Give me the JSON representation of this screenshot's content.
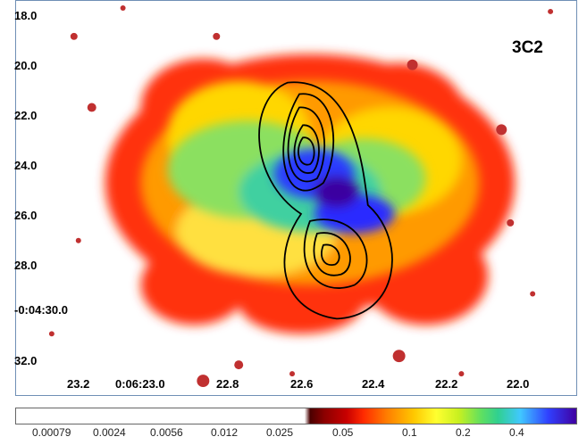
{
  "image": {
    "source_label": "3C2",
    "y_axis_ticks": [
      "18.0",
      "20.0",
      "22.0",
      "24.0",
      "26.0",
      "28.0",
      "-0:04:30.0",
      "32.0"
    ],
    "x_axis_ticks": [
      "23.2",
      "0:06:23.0",
      "22.8",
      "22.6",
      "22.4",
      "22.2",
      "22.0"
    ],
    "colorbar_ticks": [
      "0.00079",
      "0.0024",
      "0.0056",
      "0.012",
      "0.025",
      "0.05",
      "0.1",
      "0.2",
      "0.4"
    ],
    "colors": {
      "background": "#ffffff",
      "low": "#ff2a00",
      "mid": "#ffd700",
      "green": "#7be35a",
      "high": "#2a2aff",
      "contour": "#000000"
    }
  }
}
